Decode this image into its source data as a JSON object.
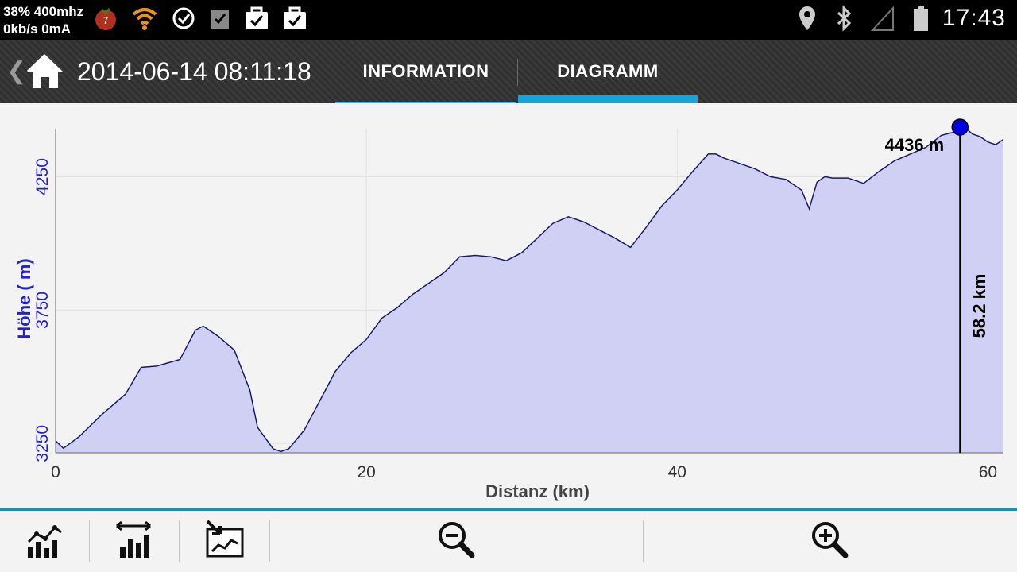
{
  "status_bar": {
    "cpu_line1": "38% 400mhz",
    "cpu_line2": "0kb/s 0mA",
    "badge_count": "7",
    "time": "17:43",
    "icons_left": [
      "tomato-badge-icon",
      "wifi-icon",
      "sync-icon",
      "checkbox-icon",
      "briefcase-check-icon",
      "briefcase-check-icon"
    ],
    "icons_right": [
      "location-icon",
      "bluetooth-icon",
      "signal-icon",
      "battery-icon"
    ]
  },
  "action_bar": {
    "title": "2014-06-14 08:11:18",
    "tabs": [
      {
        "label": "INFORMATION",
        "selected": false
      },
      {
        "label": "DIAGRAMM",
        "selected": true
      }
    ],
    "accent_color": "#1aa3d6"
  },
  "chart_data": {
    "type": "area",
    "xlabel": "Distanz (km)",
    "ylabel": "Höhe ( m)",
    "x_ticks": [
      0,
      20,
      40,
      60
    ],
    "y_ticks": [
      3250,
      3750,
      4250
    ],
    "xlim": [
      0,
      61
    ],
    "ylim": [
      3215,
      4430
    ],
    "grid": true,
    "fill_color": "#d0d0f5",
    "line_color": "#1a1a6a",
    "y_axis_color": "#2222cc",
    "marker": {
      "x": 58.2,
      "y": 4436,
      "label_value": "4436 m",
      "label_distance": "58.2 km",
      "color": "#0000dd"
    },
    "series": [
      {
        "x": [
          0,
          0.5,
          1.5,
          3,
          4.5,
          5.5,
          6.5,
          8,
          9,
          9.5,
          10.5,
          11.5,
          12.5,
          13,
          14,
          14.5,
          15,
          16,
          17,
          18,
          19,
          20,
          21,
          22,
          23,
          24,
          25,
          26,
          27,
          28,
          29,
          30,
          31,
          32,
          33,
          34,
          35,
          36,
          37,
          38,
          39,
          40,
          41,
          42,
          42.5,
          43,
          44,
          45,
          46,
          47,
          48,
          48.5,
          49,
          49.5,
          50,
          51,
          52,
          53,
          54,
          55,
          56,
          57,
          58,
          58.5,
          59,
          59.5,
          60,
          60.5,
          61
        ],
        "y": [
          3260,
          3232,
          3275,
          3360,
          3435,
          3535,
          3540,
          3565,
          3675,
          3690,
          3650,
          3600,
          3450,
          3310,
          3230,
          3220,
          3230,
          3300,
          3410,
          3520,
          3590,
          3640,
          3720,
          3760,
          3810,
          3850,
          3890,
          3950,
          3955,
          3950,
          3935,
          3965,
          4020,
          4075,
          4100,
          4080,
          4050,
          4020,
          3985,
          4060,
          4140,
          4200,
          4270,
          4335,
          4335,
          4320,
          4300,
          4280,
          4250,
          4240,
          4200,
          4130,
          4230,
          4250,
          4245,
          4245,
          4225,
          4270,
          4310,
          4335,
          4360,
          4405,
          4420,
          4436,
          4410,
          4400,
          4380,
          4370,
          4390
        ]
      }
    ]
  },
  "toolbar": {
    "buttons": [
      "line-bar-chart-icon",
      "bar-width-icon",
      "map-export-icon",
      "zoom-out-icon",
      "zoom-in-icon"
    ]
  }
}
